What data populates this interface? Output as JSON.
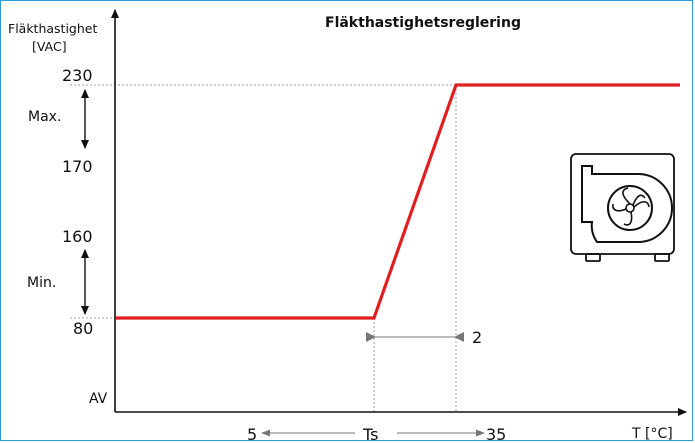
{
  "title": "Fläkthastighetsreglering",
  "y_axis": {
    "label_line1": "Fläkthastighet",
    "label_line2": "[VAC]"
  },
  "x_axis": {
    "label": "T [°C]"
  },
  "y_values": {
    "v230": "230",
    "v170": "170",
    "v160": "160",
    "v80": "80",
    "off": "AV"
  },
  "ranges": {
    "max": "Max.",
    "min": "Min."
  },
  "x_values": {
    "low": "5",
    "mid": "Ts",
    "high": "35"
  },
  "band_label": "2",
  "colors": {
    "curve": "#e02020",
    "axis": "#111111",
    "guide": "#888888",
    "frame": "#2e9bd6"
  },
  "icon": "fan-unit-icon"
}
